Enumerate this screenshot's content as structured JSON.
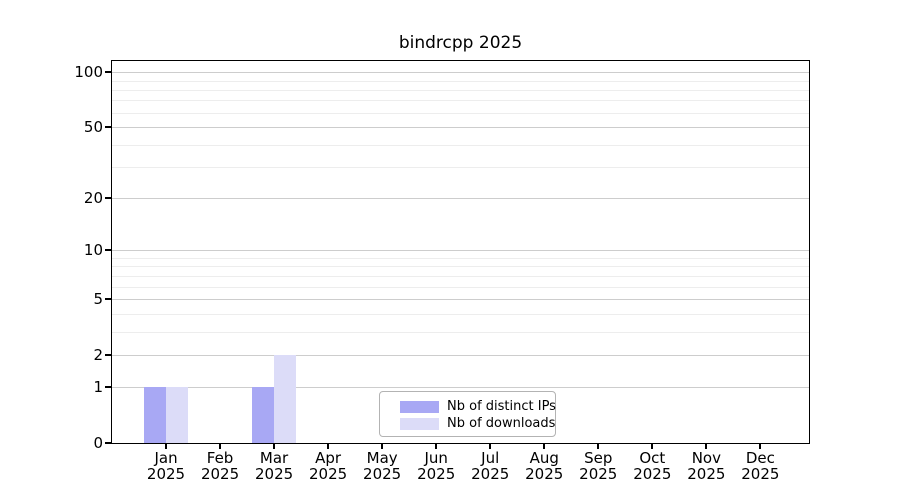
{
  "chart_data": {
    "type": "bar",
    "title": "bindrcpp 2025",
    "categories": [
      "Jan",
      "Feb",
      "Mar",
      "Apr",
      "May",
      "Jun",
      "Jul",
      "Aug",
      "Sep",
      "Oct",
      "Nov",
      "Dec"
    ],
    "year_label": "2025",
    "series": [
      {
        "name": "Nb of distinct IPs",
        "color": "#a8a8f4",
        "values": [
          1,
          0,
          1,
          0,
          0,
          0,
          0,
          0,
          0,
          0,
          0,
          0
        ]
      },
      {
        "name": "Nb of downloads",
        "color": "#dcdcf8",
        "values": [
          1,
          0,
          2,
          0,
          0,
          0,
          0,
          0,
          0,
          0,
          0,
          0
        ]
      }
    ],
    "y_scale": "log1p",
    "ylim": [
      0,
      115
    ],
    "y_ticks": [
      100,
      50,
      20,
      10,
      5,
      2,
      1,
      0
    ],
    "y_minor_gridlines": [
      3,
      4,
      6,
      7,
      8,
      9,
      30,
      40,
      60,
      70,
      80,
      90
    ],
    "grid": "horizontal",
    "legend_position": "inside-bottom-center",
    "colors": {
      "grid_major": "#cdcdcd",
      "grid_minor": "#ededed",
      "axis": "#000000",
      "legend_border": "#b3b3b3"
    }
  }
}
